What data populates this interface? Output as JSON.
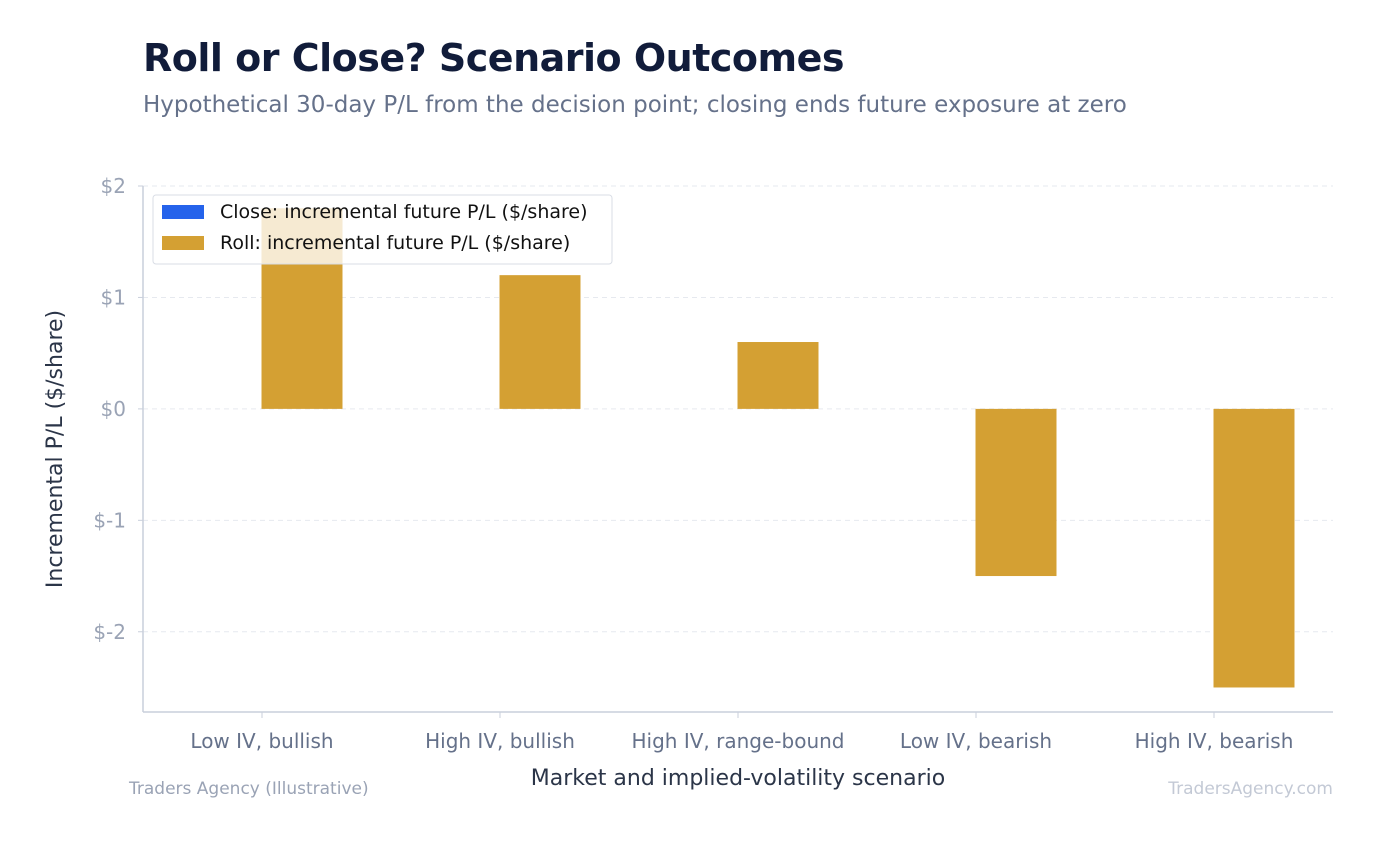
{
  "header": {
    "title": "Roll or Close? Scenario Outcomes",
    "subtitle": "Hypothetical 30-day P/L from the decision point; closing ends future exposure at zero"
  },
  "footer": {
    "source": "Traders Agency (Illustrative)",
    "site": "TradersAgency.com"
  },
  "chart_data": {
    "type": "bar",
    "xlabel": "Market and implied-volatility scenario",
    "ylabel": "Incremental P/L ($/share)",
    "categories": [
      "Low IV, bullish",
      "High IV, bullish",
      "High IV, range-bound",
      "Low IV, bearish",
      "High IV, bearish"
    ],
    "series": [
      {
        "name": "Close: incremental future P/L ($/share)",
        "color": "#2563eb",
        "values": [
          0,
          0,
          0,
          0,
          0
        ]
      },
      {
        "name": "Roll: incremental future P/L ($/share)",
        "color": "#d4a033",
        "values": [
          1.8,
          1.2,
          0.6,
          -1.5,
          -2.5
        ]
      }
    ],
    "ylim": [
      -2.72,
      2.0
    ],
    "yticks": [
      2,
      1,
      0,
      -1,
      -2
    ],
    "ytick_labels": [
      "$2",
      "$1",
      "$0",
      "$-1",
      "$-2"
    ],
    "grid": true,
    "legend_position": "top-left"
  }
}
